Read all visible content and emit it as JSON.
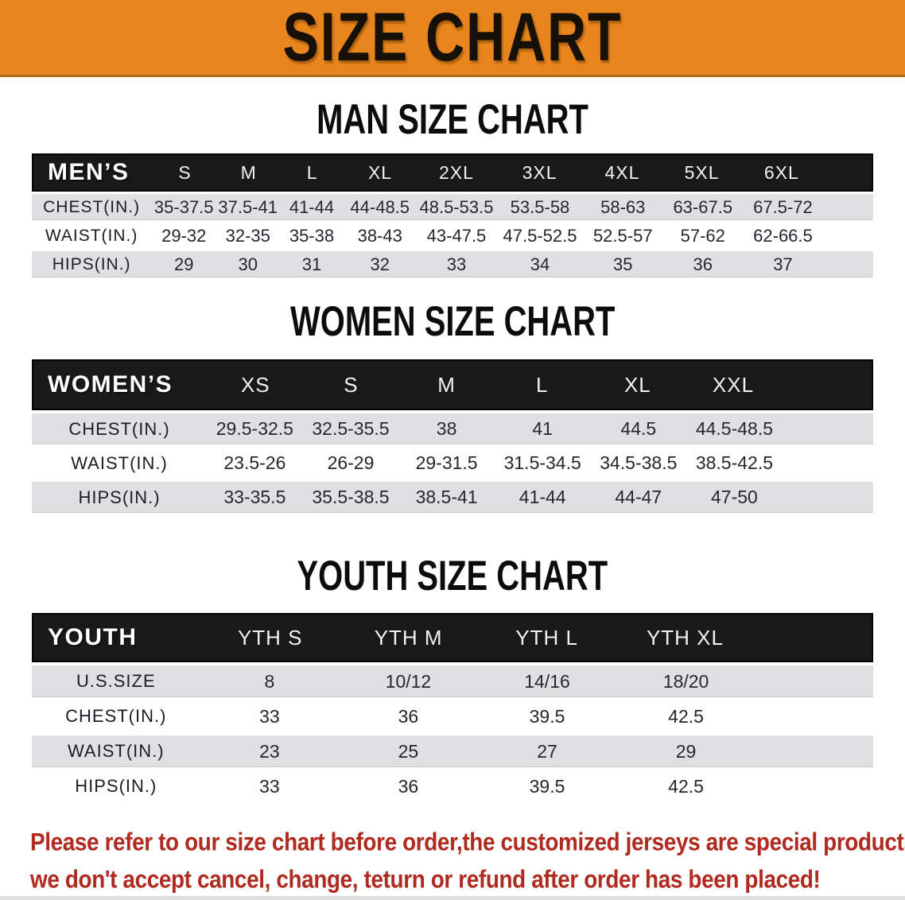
{
  "banner": {
    "title": "SIZE CHART"
  },
  "sections": [
    {
      "id": "men",
      "heading": "MAN SIZE CHART",
      "table": {
        "corner_label": "MEN’S",
        "columns": [
          "S",
          "M",
          "L",
          "XL",
          "2XL",
          "3XL",
          "4XL",
          "5XL",
          "6XL"
        ],
        "rows": [
          {
            "label": "CHEST(IN.)",
            "values": [
              "35-37.5",
              "37.5-41",
              "41-44",
              "44-48.5",
              "48.5-53.5",
              "53.5-58",
              "58-63",
              "63-67.5",
              "67.5-72"
            ]
          },
          {
            "label": "WAIST(IN.)",
            "values": [
              "29-32",
              "32-35",
              "35-38",
              "38-43",
              "43-47.5",
              "47.5-52.5",
              "52.5-57",
              "57-62",
              "62-66.5"
            ]
          },
          {
            "label": "HIPS(IN.)",
            "values": [
              "29",
              "30",
              "31",
              "32",
              "33",
              "34",
              "35",
              "36",
              "37"
            ]
          }
        ]
      }
    },
    {
      "id": "women",
      "heading": "WOMEN SIZE CHART",
      "table": {
        "corner_label": "WOMEN’S",
        "columns": [
          "XS",
          "S",
          "M",
          "L",
          "XL",
          "XXL"
        ],
        "rows": [
          {
            "label": "CHEST(IN.)",
            "values": [
              "29.5-32.5",
              "32.5-35.5",
              "38",
              "41",
              "44.5",
              "44.5-48.5"
            ]
          },
          {
            "label": "WAIST(IN.)",
            "values": [
              "23.5-26",
              "26-29",
              "29-31.5",
              "31.5-34.5",
              "34.5-38.5",
              "38.5-42.5"
            ]
          },
          {
            "label": "HIPS(IN.)",
            "values": [
              "33-35.5",
              "35.5-38.5",
              "38.5-41",
              "41-44",
              "44-47",
              "47-50"
            ]
          }
        ]
      }
    },
    {
      "id": "youth",
      "heading": "YOUTH SIZE CHART",
      "table": {
        "corner_label": "YOUTH",
        "columns": [
          "YTH S",
          "YTH M",
          "YTH L",
          "YTH XL"
        ],
        "rows": [
          {
            "label": "U.S.SIZE",
            "values": [
              "8",
              "10/12",
              "14/16",
              "18/20"
            ]
          },
          {
            "label": "CHEST(IN.)",
            "values": [
              "33",
              "36",
              "39.5",
              "42.5"
            ]
          },
          {
            "label": "WAIST(IN.)",
            "values": [
              "23",
              "25",
              "27",
              "29"
            ]
          },
          {
            "label": "HIPS(IN.)",
            "values": [
              "33",
              "36",
              "39.5",
              "42.5"
            ]
          }
        ]
      }
    }
  ],
  "footer": {
    "lines": [
      "Please refer to our size chart before order,the customized jerseys are special products,",
      "we don't accept cancel, change, teturn or refund after order has been placed!"
    ]
  },
  "colors": {
    "banner_bg": "#E8851D",
    "header_bar_bg": "#191919",
    "stripe_gray": "#E0E0E2",
    "footer_red": "#B02A20"
  }
}
